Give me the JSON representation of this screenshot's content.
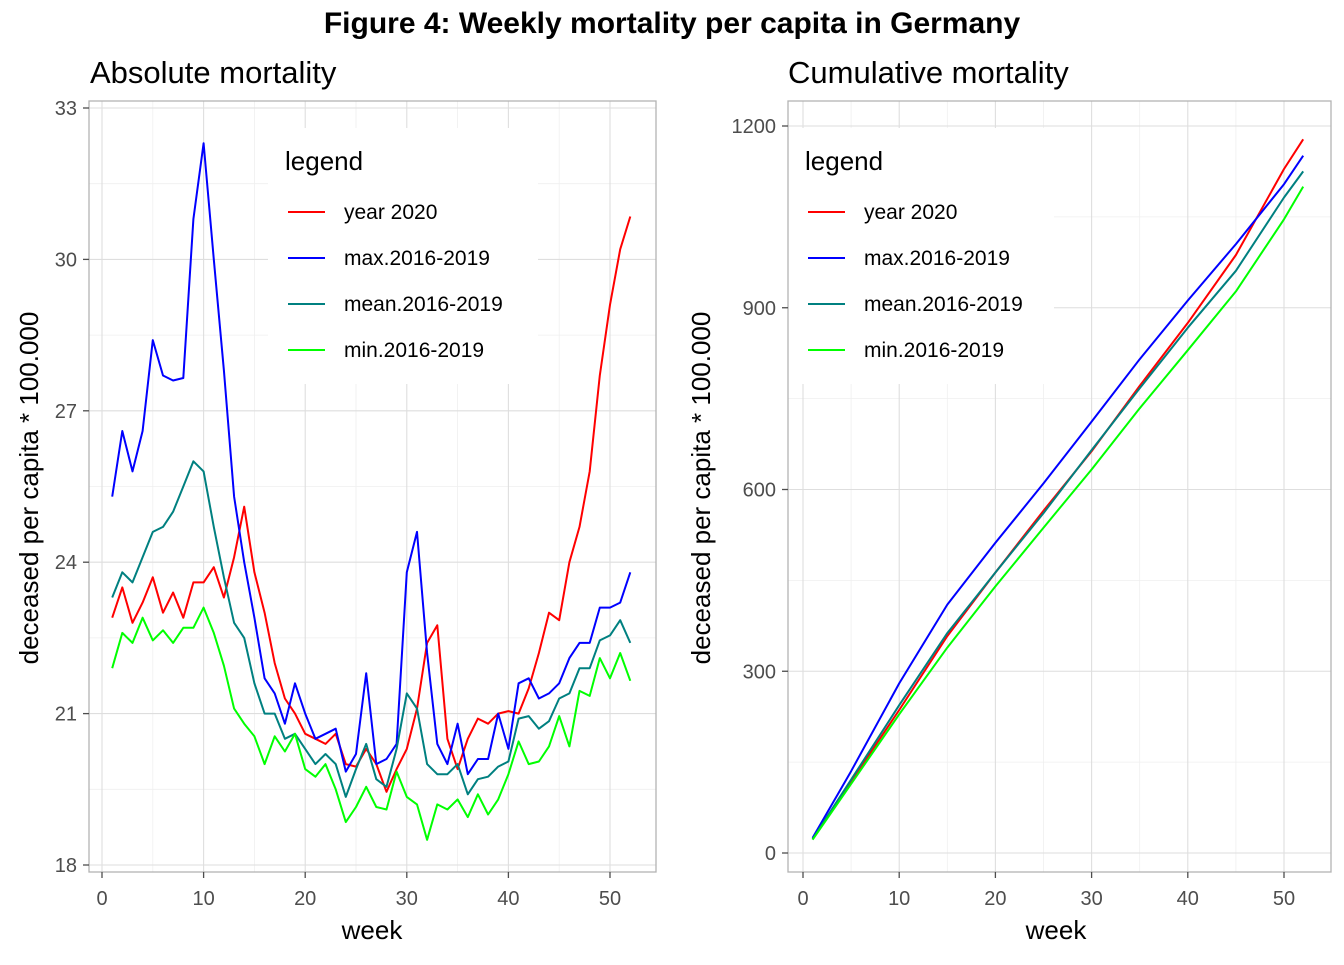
{
  "figure_title": "Figure 4: Weekly mortality per capita in Germany",
  "chart_data": [
    {
      "type": "line",
      "title": "Absolute mortality",
      "xlabel": "week",
      "ylabel": "deceased per capita * 100.000",
      "xlim": [
        1,
        52
      ],
      "ylim": [
        18,
        33
      ],
      "x_ticks": [
        0,
        10,
        20,
        30,
        40,
        50
      ],
      "y_ticks": [
        18,
        21,
        24,
        27,
        30,
        33
      ],
      "grid": true,
      "legend": {
        "title": "legend",
        "position": "top-right"
      },
      "x": [
        1,
        2,
        3,
        4,
        5,
        6,
        7,
        8,
        9,
        10,
        11,
        12,
        13,
        14,
        15,
        16,
        17,
        18,
        19,
        20,
        21,
        22,
        23,
        24,
        25,
        26,
        27,
        28,
        29,
        30,
        31,
        32,
        33,
        34,
        35,
        36,
        37,
        38,
        39,
        40,
        41,
        42,
        43,
        44,
        45,
        46,
        47,
        48,
        49,
        50,
        51,
        52
      ],
      "series": [
        {
          "name": "year 2020",
          "color": "#ff0000",
          "values": [
            22.9,
            23.5,
            22.8,
            23.2,
            23.7,
            23.0,
            23.4,
            22.9,
            23.6,
            23.6,
            23.9,
            23.3,
            24.1,
            25.1,
            23.8,
            23.0,
            22.0,
            21.3,
            21.0,
            20.6,
            20.5,
            20.4,
            20.6,
            20.0,
            19.95,
            20.3,
            20.0,
            19.45,
            19.9,
            20.3,
            21.1,
            22.4,
            22.75,
            20.5,
            19.9,
            20.5,
            20.9,
            20.8,
            21.0,
            21.05,
            21.0,
            21.5,
            22.2,
            23.0,
            22.85,
            24.0,
            24.7,
            25.8,
            27.7,
            29.1,
            30.2,
            30.85
          ]
        },
        {
          "name": "max.2016-2019",
          "color": "#0000ff",
          "values": [
            25.3,
            26.6,
            25.8,
            26.6,
            28.4,
            27.7,
            27.6,
            27.65,
            30.8,
            32.3,
            30.0,
            27.8,
            25.3,
            24.0,
            22.9,
            21.7,
            21.4,
            20.8,
            21.6,
            21.0,
            20.5,
            20.6,
            20.7,
            19.85,
            20.2,
            21.8,
            20.0,
            20.1,
            20.4,
            23.8,
            24.6,
            22.2,
            20.4,
            20.0,
            20.8,
            19.8,
            20.1,
            20.1,
            21.0,
            20.3,
            21.6,
            21.7,
            21.3,
            21.4,
            21.6,
            22.1,
            22.4,
            22.4,
            23.1,
            23.1,
            23.2,
            23.8
          ]
        },
        {
          "name": "mean.2016-2019",
          "color": "#008080",
          "values": [
            23.3,
            23.8,
            23.6,
            24.1,
            24.6,
            24.7,
            25.0,
            25.5,
            26.0,
            25.8,
            24.7,
            23.7,
            22.8,
            22.5,
            21.6,
            21.0,
            21.0,
            20.5,
            20.6,
            20.3,
            20.0,
            20.2,
            20.0,
            19.35,
            19.9,
            20.4,
            19.7,
            19.55,
            20.3,
            21.4,
            21.1,
            20.0,
            19.8,
            19.8,
            20.0,
            19.4,
            19.7,
            19.75,
            19.95,
            20.05,
            20.9,
            20.95,
            20.7,
            20.85,
            21.3,
            21.4,
            21.9,
            21.9,
            22.45,
            22.55,
            22.85,
            22.4
          ]
        },
        {
          "name": "min.2016-2019",
          "color": "#00ff00",
          "values": [
            21.9,
            22.6,
            22.4,
            22.9,
            22.45,
            22.65,
            22.4,
            22.7,
            22.7,
            23.1,
            22.6,
            21.95,
            21.1,
            20.8,
            20.55,
            20.0,
            20.55,
            20.25,
            20.6,
            19.9,
            19.75,
            20.0,
            19.5,
            18.85,
            19.15,
            19.55,
            19.15,
            19.1,
            19.85,
            19.35,
            19.2,
            18.5,
            19.2,
            19.1,
            19.3,
            18.95,
            19.4,
            19.0,
            19.3,
            19.8,
            20.45,
            20.0,
            20.05,
            20.35,
            20.95,
            20.35,
            21.45,
            21.35,
            22.1,
            21.7,
            22.2,
            21.65
          ]
        }
      ]
    },
    {
      "type": "line",
      "title": "Cumulative mortality",
      "xlabel": "week",
      "ylabel": "deceased per capita * 100.000",
      "xlim": [
        1,
        52
      ],
      "ylim": [
        0,
        1200
      ],
      "x_ticks": [
        0,
        10,
        20,
        30,
        40,
        50
      ],
      "y_ticks": [
        0,
        300,
        600,
        900,
        1200
      ],
      "grid": true,
      "legend": {
        "title": "legend",
        "position": "top-left"
      },
      "x": [
        1,
        5,
        10,
        15,
        20,
        25,
        30,
        35,
        40,
        45,
        50,
        52
      ],
      "series": [
        {
          "name": "year 2020",
          "color": "#ff0000",
          "values": [
            23,
            118,
            236,
            358,
            463,
            565,
            663,
            771,
            875,
            987,
            1129,
            1178
          ]
        },
        {
          "name": "max.2016-2019",
          "color": "#0000ff",
          "values": [
            25,
            135,
            280,
            410,
            512,
            610,
            712,
            815,
            912,
            1005,
            1104,
            1151
          ]
        },
        {
          "name": "mean.2016-2019",
          "color": "#008080",
          "values": [
            23,
            121,
            244,
            363,
            463,
            561,
            665,
            767,
            867,
            961,
            1082,
            1125
          ]
        },
        {
          "name": "min.2016-2019",
          "color": "#00ff00",
          "values": [
            22,
            114,
            229,
            339,
            440,
            537,
            633,
            734,
            830,
            927,
            1046,
            1100
          ]
        }
      ]
    }
  ]
}
